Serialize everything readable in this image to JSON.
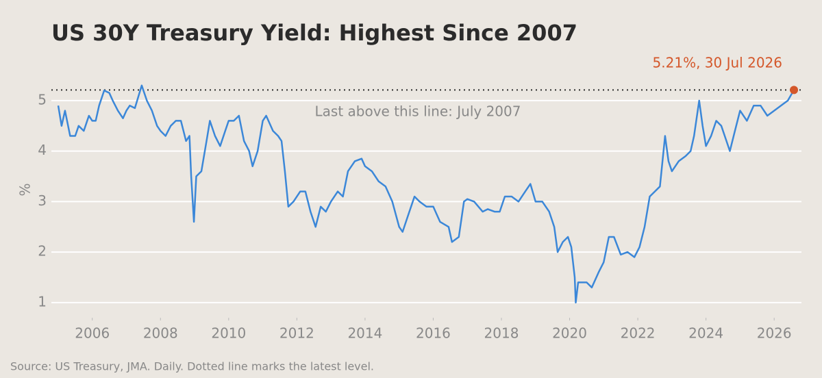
{
  "chart_data": {
    "type": "line",
    "title": "US 30Y Treasury Yield: Highest Since 2007",
    "ylabel": "%",
    "source": "Source: US Treasury, JMA. Daily. Dotted line marks the latest level.",
    "annotation": "Last above this line: July 2007",
    "latest_label": "5.21%, 30 Jul 2026",
    "reference_line": 5.21,
    "xlim": [
      2004.8,
      2026.8
    ],
    "ylim": [
      0.7,
      5.5
    ],
    "xticks": [
      2006,
      2008,
      2010,
      2012,
      2014,
      2016,
      2018,
      2020,
      2022,
      2024,
      2026
    ],
    "yticks": [
      1,
      2,
      3,
      4,
      5
    ],
    "grid": true,
    "x": [
      2005.0,
      2005.1,
      2005.2,
      2005.35,
      2005.5,
      2005.6,
      2005.75,
      2005.9,
      2006.0,
      2006.1,
      2006.2,
      2006.35,
      2006.5,
      2006.6,
      2006.75,
      2006.9,
      2007.0,
      2007.1,
      2007.25,
      2007.45,
      2007.6,
      2007.75,
      2007.9,
      2008.0,
      2008.15,
      2008.3,
      2008.45,
      2008.6,
      2008.75,
      2008.85,
      2008.9,
      2008.98,
      2009.05,
      2009.2,
      2009.35,
      2009.45,
      2009.6,
      2009.75,
      2009.9,
      2010.0,
      2010.15,
      2010.3,
      2010.45,
      2010.6,
      2010.7,
      2010.85,
      2011.0,
      2011.1,
      2011.3,
      2011.45,
      2011.55,
      2011.65,
      2011.75,
      2011.9,
      2012.1,
      2012.25,
      2012.4,
      2012.55,
      2012.7,
      2012.85,
      2013.0,
      2013.2,
      2013.35,
      2013.5,
      2013.7,
      2013.9,
      2014.0,
      2014.2,
      2014.4,
      2014.6,
      2014.8,
      2015.0,
      2015.1,
      2015.25,
      2015.45,
      2015.6,
      2015.8,
      2016.0,
      2016.2,
      2016.45,
      2016.55,
      2016.75,
      2016.9,
      2017.0,
      2017.2,
      2017.45,
      2017.6,
      2017.8,
      2017.95,
      2018.1,
      2018.3,
      2018.5,
      2018.7,
      2018.85,
      2019.0,
      2019.2,
      2019.4,
      2019.55,
      2019.65,
      2019.8,
      2019.95,
      2020.05,
      2020.15,
      2020.18,
      2020.25,
      2020.5,
      2020.65,
      2020.85,
      2021.0,
      2021.15,
      2021.3,
      2021.5,
      2021.7,
      2021.9,
      2022.05,
      2022.2,
      2022.35,
      2022.5,
      2022.65,
      2022.8,
      2022.9,
      2023.0,
      2023.2,
      2023.4,
      2023.55,
      2023.65,
      2023.8,
      2023.9,
      2024.0,
      2024.15,
      2024.3,
      2024.45,
      2024.6,
      2024.7,
      2024.85,
      2025.0,
      2025.2,
      2025.4,
      2025.6,
      2025.8,
      2026.0,
      2026.2,
      2026.4,
      2026.58
    ],
    "series": [
      {
        "name": "US 30Y",
        "color": "#3b87d8",
        "values": [
          4.9,
          4.5,
          4.8,
          4.3,
          4.3,
          4.5,
          4.4,
          4.7,
          4.6,
          4.6,
          4.9,
          5.2,
          5.15,
          5.0,
          4.8,
          4.65,
          4.8,
          4.9,
          4.85,
          5.3,
          5.0,
          4.8,
          4.5,
          4.4,
          4.3,
          4.5,
          4.6,
          4.6,
          4.2,
          4.3,
          3.5,
          2.6,
          3.5,
          3.6,
          4.2,
          4.6,
          4.3,
          4.1,
          4.4,
          4.6,
          4.6,
          4.7,
          4.2,
          4.0,
          3.7,
          4.0,
          4.6,
          4.7,
          4.4,
          4.3,
          4.2,
          3.6,
          2.9,
          3.0,
          3.2,
          3.2,
          2.8,
          2.5,
          2.9,
          2.8,
          3.0,
          3.2,
          3.1,
          3.6,
          3.8,
          3.85,
          3.7,
          3.6,
          3.4,
          3.3,
          3.0,
          2.5,
          2.4,
          2.7,
          3.1,
          3.0,
          2.9,
          2.9,
          2.6,
          2.5,
          2.2,
          2.3,
          3.0,
          3.05,
          3.0,
          2.8,
          2.85,
          2.8,
          2.8,
          3.1,
          3.1,
          3.0,
          3.2,
          3.35,
          3.0,
          3.0,
          2.8,
          2.5,
          2.0,
          2.2,
          2.3,
          2.1,
          1.5,
          1.0,
          1.4,
          1.4,
          1.3,
          1.6,
          1.8,
          2.3,
          2.3,
          1.95,
          2.0,
          1.9,
          2.1,
          2.5,
          3.1,
          3.2,
          3.3,
          4.3,
          3.8,
          3.6,
          3.8,
          3.9,
          4.0,
          4.3,
          5.0,
          4.5,
          4.1,
          4.3,
          4.6,
          4.5,
          4.2,
          4.0,
          4.4,
          4.8,
          4.6,
          4.9,
          4.9,
          4.7,
          4.8,
          4.9,
          5.0,
          5.21
        ]
      }
    ],
    "marker_color": "#d4572a"
  }
}
